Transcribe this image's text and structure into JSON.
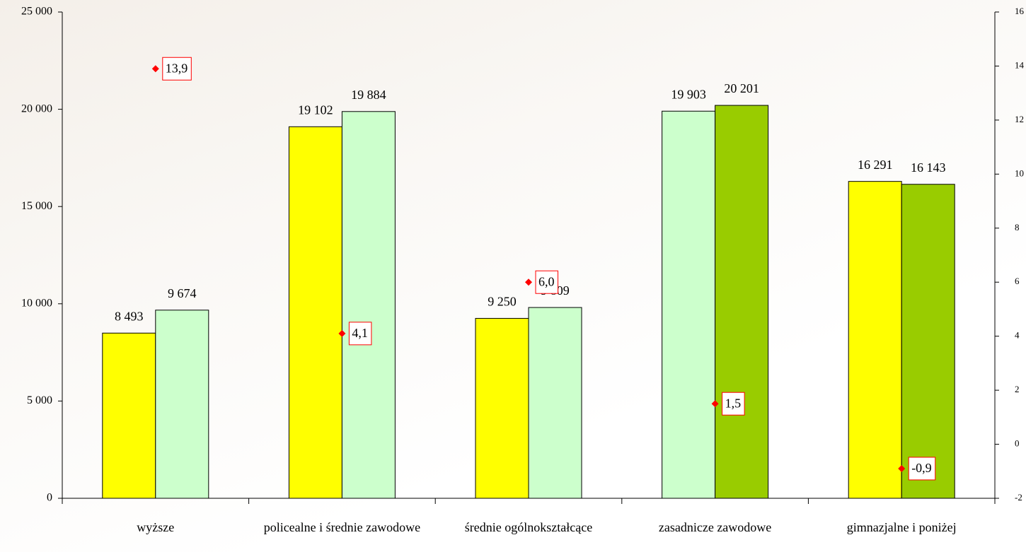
{
  "chart_data": {
    "type": "bar",
    "categories": [
      "wyższe",
      "policealne i średnie zawodowe",
      "średnie ogólnokształcące",
      "zasadnicze zawodowe",
      "gimnazjalne i poniżej"
    ],
    "series": [
      {
        "values": [
          8493,
          19102,
          9250,
          19903,
          16291
        ],
        "value_labels": [
          "8 493",
          "19 102",
          "9 250",
          "19 903",
          "16 291"
        ],
        "colors": [
          "#ffff00",
          "#ffff00",
          "#ffff00",
          "#ccffcc",
          "#ffff00"
        ]
      },
      {
        "values": [
          9674,
          19884,
          9809,
          20201,
          16143
        ],
        "value_labels": [
          "9 674",
          "19 884",
          "9 809",
          "20 201",
          "16 143"
        ],
        "colors": [
          "#ccffcc",
          "#ccffcc",
          "#ccffcc",
          "#99cc00",
          "#99cc00"
        ]
      },
      {
        "type": "scatter",
        "axis": "y2",
        "color": "#ff0000",
        "marker": "diamond",
        "values": [
          13.9,
          4.1,
          6.0,
          1.5,
          -0.9
        ],
        "value_labels": [
          "13,9",
          "4,1",
          "6,0",
          "1,5",
          "-0,9"
        ]
      }
    ],
    "ylim": [
      0,
      25000
    ],
    "yticks": [
      0,
      {
        "value": 5000,
        "label": "5 000"
      },
      {
        "value": 10000,
        "label": "10 000"
      },
      {
        "value": 15000,
        "label": "15 000"
      },
      {
        "value": 20000,
        "label": "20 000"
      },
      {
        "value": 25000,
        "label": "25 000"
      }
    ],
    "y2lim": [
      -2,
      16
    ],
    "y2ticks": [
      -2,
      0,
      2,
      4,
      6,
      8,
      10,
      12,
      14,
      16
    ],
    "grid": false
  }
}
